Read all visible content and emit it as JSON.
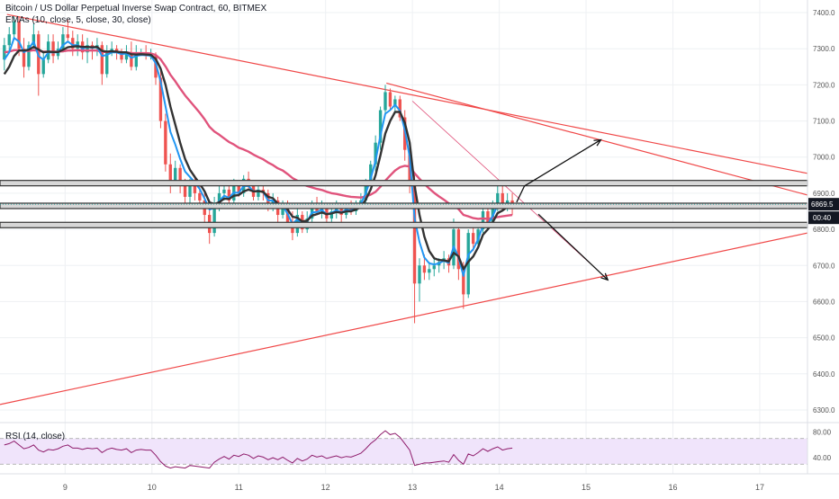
{
  "legend": {
    "title": "Bitcoin / US Dollar Perpetual Inverse Swap Contract, 60, BITMEX",
    "emas": "EMAs (10, close, 5, close, 30, close)",
    "rsi": "RSI (14, close)"
  },
  "colors": {
    "up": "#26a69a",
    "down": "#ef5350",
    "ema_fast": "#2196f3",
    "ema_mid": "#333333",
    "ema_slow": "#e0537c",
    "trendline": "#f04848",
    "rsi_line": "#8e1b6b",
    "rsi_band": "#f0e4fb",
    "price_tag": "#131722"
  },
  "price_label": "6869.5",
  "countdown_label": "00:40",
  "chart_data": [
    {
      "type": "candlestick",
      "title": "Bitcoin / US Dollar Perpetual Inverse Swap Contract, 60, BITMEX",
      "x_ticks": [
        "9",
        "10",
        "11",
        "12",
        "13",
        "14",
        "15",
        "16",
        "17"
      ],
      "y_ticks": [
        "7400.0",
        "7300.0",
        "7200.0",
        "7100.0",
        "7000.0",
        "6900.0",
        "6800.0",
        "6700.0",
        "6600.0",
        "6500.0",
        "6400.0",
        "6300.0"
      ],
      "xlim": [
        8.25,
        17.55
      ],
      "ylim": [
        6270,
        7435
      ],
      "last_price": 6869.5,
      "ohlc": [
        [
          7270,
          7330,
          7240,
          7310
        ],
        [
          7310,
          7360,
          7290,
          7340
        ],
        [
          7340,
          7390,
          7330,
          7375
        ],
        [
          7375,
          7390,
          7280,
          7300
        ],
        [
          7300,
          7330,
          7220,
          7250
        ],
        [
          7250,
          7320,
          7240,
          7310
        ],
        [
          7310,
          7370,
          7300,
          7340
        ],
        [
          7340,
          7350,
          7170,
          7230
        ],
        [
          7230,
          7290,
          7220,
          7270
        ],
        [
          7270,
          7340,
          7260,
          7320
        ],
        [
          7320,
          7340,
          7260,
          7280
        ],
        [
          7280,
          7320,
          7270,
          7300
        ],
        [
          7300,
          7360,
          7290,
          7340
        ],
        [
          7340,
          7380,
          7320,
          7330
        ],
        [
          7330,
          7350,
          7280,
          7300
        ],
        [
          7300,
          7340,
          7280,
          7320
        ],
        [
          7320,
          7340,
          7270,
          7290
        ],
        [
          7290,
          7330,
          7260,
          7310
        ],
        [
          7310,
          7320,
          7270,
          7300
        ],
        [
          7300,
          7330,
          7280,
          7310
        ],
        [
          7310,
          7320,
          7200,
          7230
        ],
        [
          7230,
          7310,
          7220,
          7290
        ],
        [
          7290,
          7320,
          7280,
          7300
        ],
        [
          7300,
          7310,
          7270,
          7290
        ],
        [
          7290,
          7300,
          7260,
          7270
        ],
        [
          7270,
          7310,
          7260,
          7290
        ],
        [
          7290,
          7320,
          7240,
          7250
        ],
        [
          7250,
          7310,
          7240,
          7290
        ],
        [
          7290,
          7300,
          7280,
          7290
        ],
        [
          7290,
          7310,
          7270,
          7280
        ],
        [
          7280,
          7300,
          7270,
          7280
        ],
        [
          7280,
          7290,
          7200,
          7220
        ],
        [
          7220,
          7240,
          7080,
          7100
        ],
        [
          7100,
          7120,
          6960,
          6980
        ],
        [
          6980,
          7010,
          6900,
          6930
        ],
        [
          6930,
          6990,
          6920,
          6970
        ],
        [
          6970,
          6980,
          6900,
          6920
        ],
        [
          6920,
          6940,
          6860,
          6890
        ],
        [
          6890,
          6940,
          6870,
          6920
        ],
        [
          6920,
          6950,
          6880,
          6900
        ],
        [
          6900,
          6920,
          6860,
          6880
        ],
        [
          6880,
          6900,
          6820,
          6840
        ],
        [
          6840,
          6880,
          6760,
          6790
        ],
        [
          6790,
          6890,
          6780,
          6870
        ],
        [
          6870,
          6920,
          6850,
          6900
        ],
        [
          6900,
          6930,
          6880,
          6910
        ],
        [
          6910,
          6920,
          6870,
          6880
        ],
        [
          6880,
          6940,
          6870,
          6920
        ],
        [
          6920,
          6930,
          6890,
          6900
        ],
        [
          6900,
          6950,
          6890,
          6940
        ],
        [
          6940,
          6960,
          6910,
          6920
        ],
        [
          6920,
          6930,
          6880,
          6890
        ],
        [
          6890,
          6930,
          6880,
          6910
        ],
        [
          6910,
          6920,
          6880,
          6900
        ],
        [
          6900,
          6910,
          6850,
          6860
        ],
        [
          6860,
          6900,
          6850,
          6880
        ],
        [
          6880,
          6890,
          6820,
          6840
        ],
        [
          6840,
          6880,
          6830,
          6870
        ],
        [
          6870,
          6880,
          6810,
          6820
        ],
        [
          6820,
          6850,
          6770,
          6790
        ],
        [
          6790,
          6860,
          6780,
          6840
        ],
        [
          6840,
          6850,
          6790,
          6800
        ],
        [
          6800,
          6850,
          6790,
          6830
        ],
        [
          6830,
          6880,
          6820,
          6870
        ],
        [
          6870,
          6890,
          6840,
          6850
        ],
        [
          6850,
          6880,
          6830,
          6860
        ],
        [
          6860,
          6870,
          6820,
          6830
        ],
        [
          6830,
          6870,
          6810,
          6850
        ],
        [
          6850,
          6880,
          6830,
          6860
        ],
        [
          6860,
          6870,
          6820,
          6840
        ],
        [
          6840,
          6870,
          6830,
          6860
        ],
        [
          6860,
          6880,
          6840,
          6850
        ],
        [
          6850,
          6880,
          6840,
          6870
        ],
        [
          6870,
          6900,
          6860,
          6880
        ],
        [
          6880,
          6940,
          6870,
          6930
        ],
        [
          6930,
          6990,
          6920,
          6980
        ],
        [
          6980,
          7060,
          6960,
          7040
        ],
        [
          7040,
          7140,
          7020,
          7130
        ],
        [
          7130,
          7200,
          7120,
          7180
        ],
        [
          7180,
          7190,
          7130,
          7140
        ],
        [
          7140,
          7170,
          7120,
          7160
        ],
        [
          7160,
          7170,
          7100,
          7110
        ],
        [
          7110,
          7130,
          6990,
          7020
        ],
        [
          7020,
          7040,
          6900,
          6930
        ],
        [
          6930,
          6950,
          6540,
          6650
        ],
        [
          6650,
          6720,
          6600,
          6700
        ],
        [
          6700,
          6730,
          6660,
          6680
        ],
        [
          6680,
          6710,
          6660,
          6690
        ],
        [
          6690,
          6720,
          6670,
          6700
        ],
        [
          6700,
          6720,
          6680,
          6710
        ],
        [
          6710,
          6740,
          6690,
          6720
        ],
        [
          6720,
          6730,
          6680,
          6700
        ],
        [
          6700,
          6830,
          6690,
          6800
        ],
        [
          6800,
          6820,
          6660,
          6690
        ],
        [
          6690,
          6710,
          6580,
          6620
        ],
        [
          6620,
          6800,
          6610,
          6790
        ],
        [
          6790,
          6820,
          6740,
          6760
        ],
        [
          6760,
          6810,
          6750,
          6800
        ],
        [
          6800,
          6860,
          6790,
          6850
        ],
        [
          6850,
          6870,
          6810,
          6820
        ],
        [
          6820,
          6880,
          6810,
          6860
        ],
        [
          6860,
          6930,
          6850,
          6900
        ],
        [
          6900,
          6920,
          6850,
          6860
        ],
        [
          6860,
          6900,
          6850,
          6880
        ],
        [
          6880,
          6900,
          6840,
          6870
        ]
      ],
      "ema_fast": [
        7270,
        7290,
        7330,
        7320,
        7290,
        7300,
        7320,
        7280,
        7270,
        7290,
        7290,
        7290,
        7310,
        7320,
        7310,
        7310,
        7300,
        7305,
        7302,
        7305,
        7280,
        7283,
        7290,
        7290,
        7285,
        7287,
        7275,
        7280,
        7283,
        7282,
        7281,
        7260,
        7210,
        7140,
        7070,
        7035,
        6995,
        6960,
        6945,
        6930,
        6912,
        6885,
        6855,
        6860,
        6878,
        6893,
        6887,
        6902,
        6901,
        6920,
        6920,
        6905,
        6907,
        6903,
        6880,
        6880,
        6860,
        6865,
        6843,
        6815,
        6828,
        6813,
        6822,
        6847,
        6848,
        6854,
        6842,
        6846,
        6853,
        6847,
        6854,
        6852,
        6861,
        6871,
        6900,
        6940,
        6990,
        7060,
        7120,
        7130,
        7145,
        7128,
        7075,
        7000,
        6830,
        6765,
        6722,
        6706,
        6703,
        6706,
        6713,
        6707,
        6753,
        6722,
        6671,
        6730,
        6745,
        6772,
        6811,
        6815,
        6837,
        6868,
        6864,
        6872,
        6871
      ],
      "ema_mid": [
        7230,
        7250,
        7280,
        7295,
        7295,
        7297,
        7305,
        7298,
        7290,
        7292,
        7291,
        7291,
        7297,
        7304,
        7306,
        7307,
        7305,
        7305,
        7304,
        7305,
        7294,
        7292,
        7293,
        7292,
        7290,
        7290,
        7285,
        7284,
        7285,
        7284,
        7283,
        7272,
        7245,
        7200,
        7140,
        7090,
        7040,
        6995,
        6965,
        6945,
        6927,
        6905,
        6875,
        6870,
        6875,
        6885,
        6884,
        6893,
        6895,
        6905,
        6910,
        6905,
        6906,
        6904,
        6890,
        6886,
        6871,
        6869,
        6855,
        6835,
        6832,
        6822,
        6824,
        6838,
        6842,
        6847,
        6842,
        6844,
        6848,
        6846,
        6850,
        6850,
        6855,
        6862,
        6882,
        6910,
        6950,
        7005,
        7065,
        7100,
        7125,
        7125,
        7095,
        7040,
        6920,
        6840,
        6780,
        6740,
        6720,
        6715,
        6714,
        6711,
        6735,
        6725,
        6690,
        6710,
        6725,
        6750,
        6785,
        6800,
        6820,
        6845,
        6852,
        6862,
        6865
      ],
      "ema_slow": [
        7290,
        7292,
        7296,
        7296,
        7294,
        7294,
        7296,
        7294,
        7292,
        7292,
        7292,
        7292,
        7293,
        7295,
        7295,
        7296,
        7295,
        7295,
        7295,
        7295,
        7291,
        7291,
        7291,
        7291,
        7290,
        7290,
        7288,
        7288,
        7288,
        7288,
        7287,
        7283,
        7271,
        7251,
        7228,
        7210,
        7190,
        7171,
        7155,
        7139,
        7123,
        7105,
        7084,
        7071,
        7062,
        7052,
        7042,
        7035,
        7026,
        7021,
        7015,
        7007,
        7000,
        6994,
        6985,
        6978,
        6969,
        6963,
        6953,
        6942,
        6935,
        6926,
        6920,
        6916,
        6912,
        6909,
        6904,
        6900,
        6898,
        6895,
        6892,
        6890,
        6889,
        6888,
        6891,
        6896,
        6904,
        6918,
        6935,
        6949,
        6963,
        6972,
        6976,
        6974,
        6955,
        6940,
        6926,
        6913,
        6901,
        6891,
        6882,
        6872,
        6867,
        6856,
        6840,
        6836,
        6831,
        6829,
        6830,
        6829,
        6831,
        6834,
        6836,
        6838,
        6840
      ],
      "annotations": {
        "horizontal_levels": [
          6928,
          6865,
          6812
        ],
        "trendlines": [
          {
            "from": [
              8.33,
              7395
            ],
            "to": [
              17.55,
              6955
            ]
          },
          {
            "from": [
              12.7,
              7205
            ],
            "to": [
              17.55,
              6895
            ]
          },
          {
            "from": [
              8.25,
              6315
            ],
            "to": [
              17.55,
              6790
            ]
          },
          {
            "from": [
              13.0,
              7155
            ],
            "to": [
              15.05,
              6705
            ]
          }
        ],
        "arrows": [
          {
            "from": [
              14.2,
              6875
            ],
            "to": [
              14.29,
              6920
            ]
          },
          {
            "from": [
              14.29,
              6920
            ],
            "to": [
              15.17,
              7048
            ]
          },
          {
            "from": [
              14.45,
              6842
            ],
            "to": [
              15.25,
              6660
            ]
          }
        ]
      }
    },
    {
      "type": "line",
      "title": "RSI (14, close)",
      "y_ticks": [
        "80.00",
        "40.00"
      ],
      "ylim": [
        15,
        92
      ],
      "band": [
        30,
        70
      ],
      "values": [
        60,
        62,
        66,
        60,
        54,
        56,
        60,
        52,
        49,
        53,
        52,
        54,
        58,
        60,
        55,
        55,
        53,
        55,
        54,
        55,
        48,
        53,
        55,
        53,
        52,
        54,
        48,
        52,
        53,
        52,
        52,
        44,
        34,
        27,
        24,
        26,
        25,
        24,
        28,
        27,
        26,
        25,
        24,
        33,
        38,
        42,
        38,
        44,
        42,
        46,
        44,
        39,
        43,
        41,
        37,
        40,
        37,
        41,
        36,
        32,
        39,
        35,
        38,
        44,
        41,
        43,
        39,
        41,
        43,
        40,
        42,
        41,
        44,
        47,
        54,
        62,
        68,
        76,
        82,
        76,
        78,
        72,
        62,
        52,
        28,
        30,
        32,
        32,
        33,
        34,
        35,
        33,
        45,
        36,
        30,
        46,
        43,
        48,
        54,
        50,
        54,
        57,
        52,
        54,
        55
      ]
    }
  ]
}
